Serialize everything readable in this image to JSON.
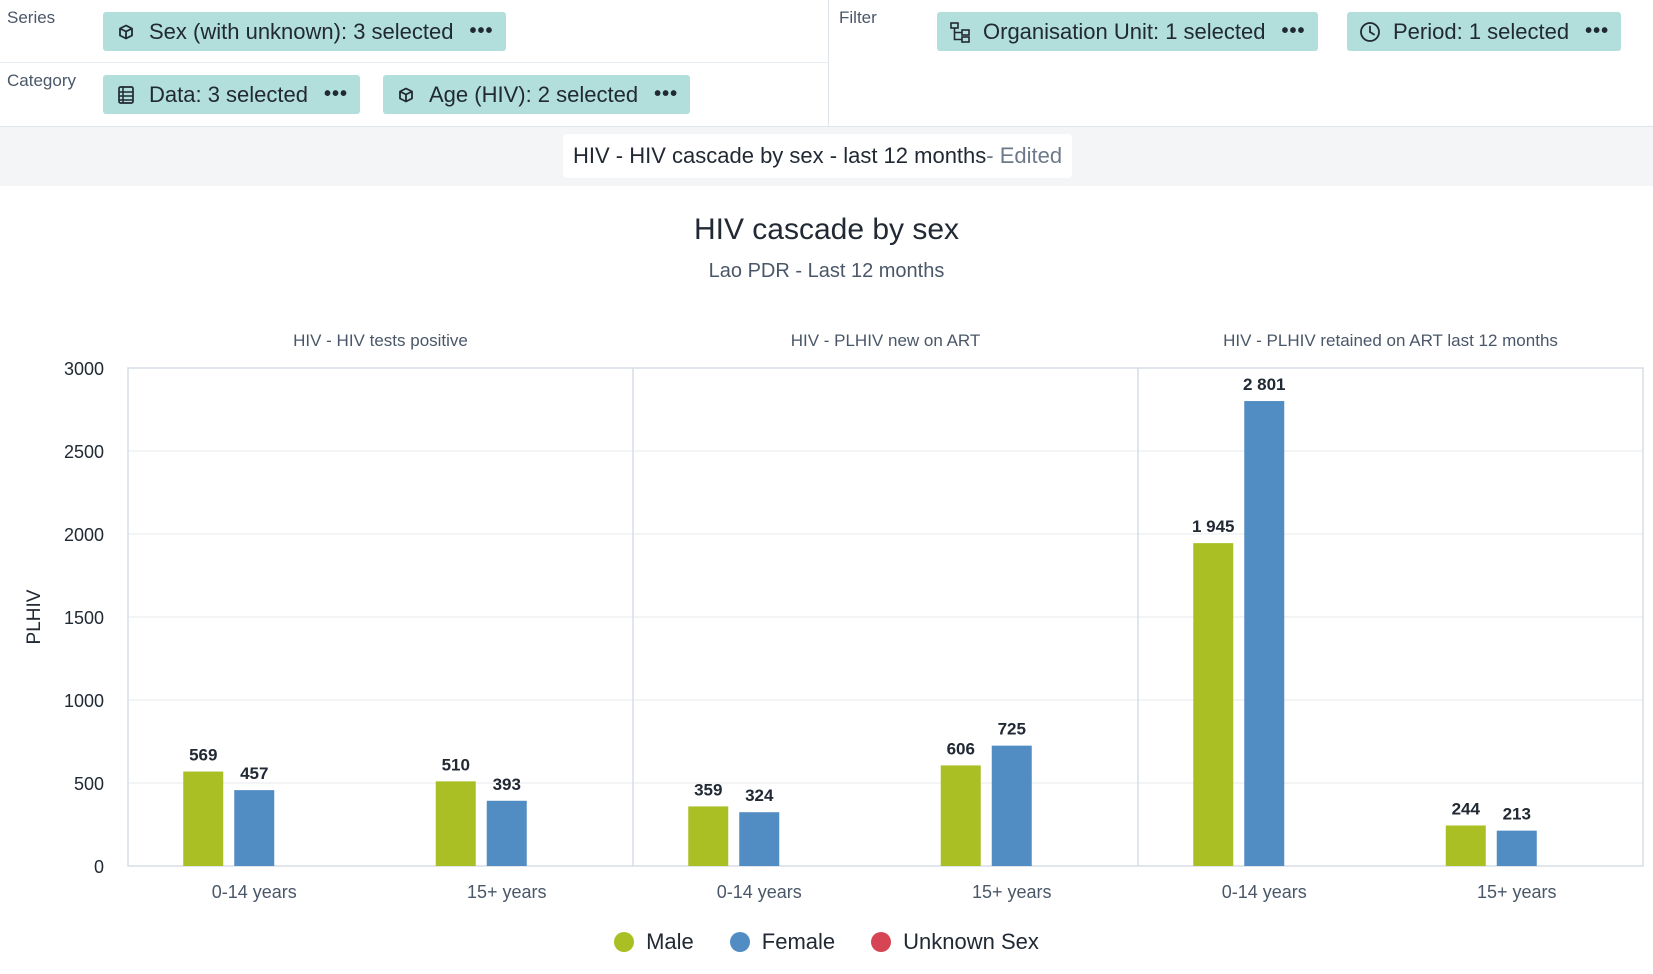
{
  "layout": {
    "series_label": "Series",
    "category_label": "Category",
    "filter_label": "Filter",
    "series_chips": [
      {
        "label": "Sex (with unknown): 3 selected",
        "icon": "dimension-cube-icon"
      }
    ],
    "category_chips": [
      {
        "label": "Data: 3 selected",
        "icon": "data-table-icon"
      },
      {
        "label": "Age (HIV): 2 selected",
        "icon": "dimension-cube-icon"
      }
    ],
    "filter_chips": [
      {
        "label": "Organisation Unit: 1 selected",
        "icon": "org-tree-icon"
      },
      {
        "label": "Period: 1 selected",
        "icon": "clock-icon"
      }
    ],
    "menu_glyph": "•••"
  },
  "visualization": {
    "name": "HIV - HIV cascade by sex - last 12 months",
    "status": " - Edited"
  },
  "colors": {
    "male": "#a9bf23",
    "female": "#518cc3",
    "unknown": "#d74554",
    "chip_bg": "#b2dfdb"
  },
  "chart_data": {
    "type": "bar",
    "title": "HIV cascade by sex",
    "subtitle": "Lao PDR - Last 12 months",
    "ylabel": "PLHIV",
    "ylim": [
      0,
      3000
    ],
    "yticks": [
      "0",
      "500",
      "1000",
      "1500",
      "2000",
      "2500",
      "3000"
    ],
    "groups": [
      {
        "name": "HIV - HIV tests positive",
        "categories": [
          "0-14 years",
          "15+ years"
        ]
      },
      {
        "name": "HIV - PLHIV new on ART",
        "categories": [
          "0-14 years",
          "15+ years"
        ]
      },
      {
        "name": "HIV - PLHIV retained on ART last 12 months",
        "categories": [
          "0-14 years",
          "15+ years"
        ]
      }
    ],
    "series": [
      {
        "name": "Male",
        "values": [
          569,
          510,
          359,
          606,
          1945,
          244
        ],
        "labels": [
          "569",
          "510",
          "359",
          "606",
          "1 945",
          "244"
        ]
      },
      {
        "name": "Female",
        "values": [
          457,
          393,
          324,
          725,
          2801,
          213
        ],
        "labels": [
          "457",
          "393",
          "324",
          "725",
          "2 801",
          "213"
        ]
      },
      {
        "name": "Unknown Sex",
        "values": [
          0,
          0,
          0,
          0,
          0,
          0
        ],
        "labels": [
          "",
          "",
          "",
          "",
          "",
          ""
        ]
      }
    ],
    "grid": true,
    "legend": "bottom-center"
  }
}
